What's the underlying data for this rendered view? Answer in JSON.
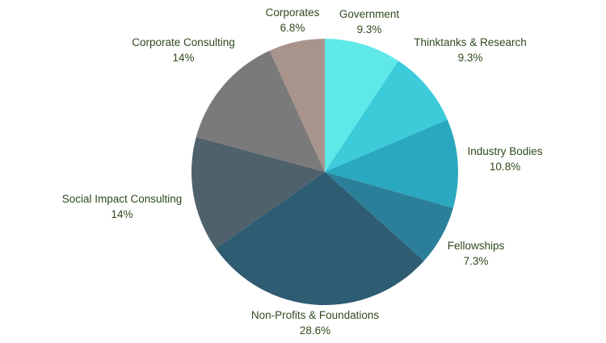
{
  "chart_data": {
    "type": "pie",
    "title": "",
    "start_angle_deg": 0,
    "direction": "clockwise",
    "slices": [
      {
        "label": "Government",
        "value": 9.3,
        "value_label": "9.3%",
        "color": "#5ee8e8"
      },
      {
        "label": "Thinktanks & Research",
        "value": 9.3,
        "value_label": "9.3%",
        "color": "#3ccbd9"
      },
      {
        "label": "Industry Bodies",
        "value": 10.8,
        "value_label": "10.8%",
        "color": "#2aa8bf"
      },
      {
        "label": "Fellowships",
        "value": 7.3,
        "value_label": "7.3%",
        "color": "#2c7f98"
      },
      {
        "label": "Non-Profits & Foundations",
        "value": 28.6,
        "value_label": "28.6%",
        "color": "#2d5c73"
      },
      {
        "label": "Social Impact Consulting",
        "value": 14,
        "value_label": "14%",
        "color": "#4f616b"
      },
      {
        "label": "Corporate Consulting",
        "value": 14,
        "value_label": "14%",
        "color": "#7a7a7a"
      },
      {
        "label": "Corporates",
        "value": 6.8,
        "value_label": "6.8%",
        "color": "#a9948c"
      }
    ],
    "legend": "none",
    "label_color": "#2f4a1f"
  }
}
